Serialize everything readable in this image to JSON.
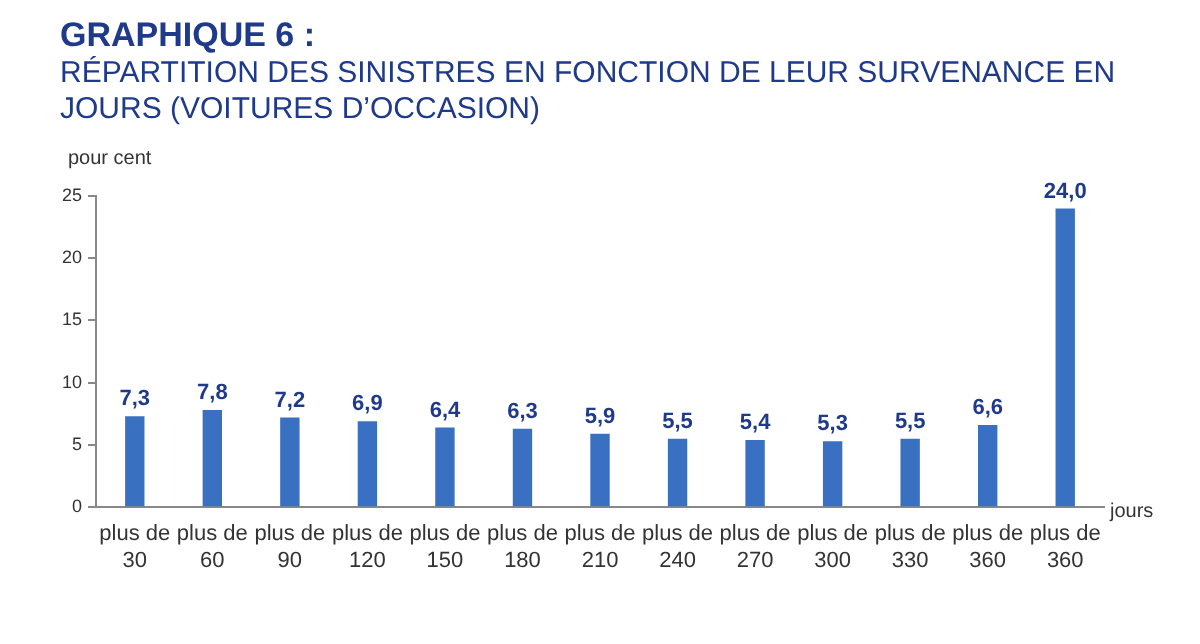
{
  "chart_data": {
    "type": "bar",
    "title": "GRAPHIQUE 6 :",
    "subtitle": "RÉPARTITION DES SINISTRES EN FONCTION DE LEUR SURVENANCE EN JOURS (VOITURES D’OCCASION)",
    "ylabel": "pour cent",
    "xlabel": "jours",
    "categories": [
      "plus de 30",
      "plus de 60",
      "plus de 90",
      "plus de 120",
      "plus de 150",
      "plus de 180",
      "plus de 210",
      "plus de 240",
      "plus de 270",
      "plus de 300",
      "plus de 330",
      "plus de 360",
      "plus de 360"
    ],
    "values": [
      7.3,
      7.8,
      7.2,
      6.9,
      6.4,
      6.3,
      5.9,
      5.5,
      5.4,
      5.3,
      5.5,
      6.6,
      24.0
    ],
    "value_labels": [
      "7,3",
      "7,8",
      "7,2",
      "6,9",
      "6,4",
      "6,3",
      "5,9",
      "5,5",
      "5,4",
      "5,3",
      "5,5",
      "6,6",
      "24,0"
    ],
    "color": "#3a70c2",
    "ylim": [
      0,
      25
    ],
    "yticks": [
      0,
      5,
      10,
      15,
      20,
      25
    ],
    "grid": false,
    "legend": false
  }
}
